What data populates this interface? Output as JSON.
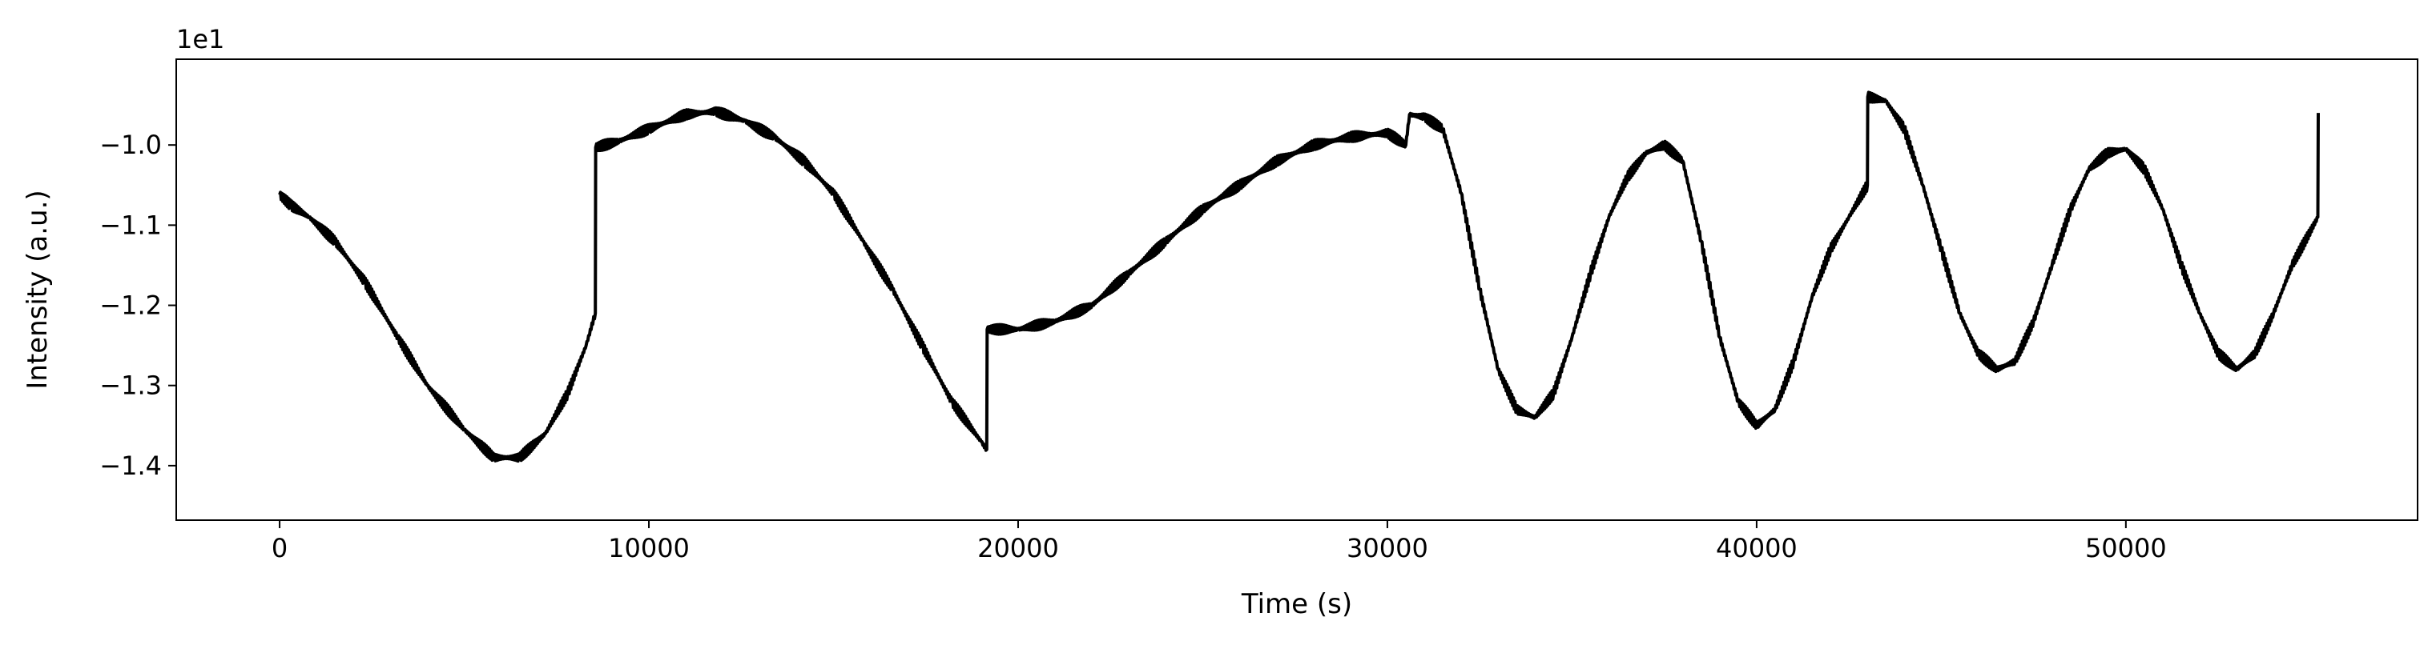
{
  "chart_data": {
    "type": "line",
    "title": "",
    "xlabel": "Time (s)",
    "ylabel": "Intensity (a.u.)",
    "y_offset_label": "1e1",
    "xlim": [
      -2800,
      57900
    ],
    "ylim": [
      -1.468,
      -0.893
    ],
    "x_ticks": [
      0,
      10000,
      20000,
      30000,
      40000,
      50000
    ],
    "x_tick_labels": [
      "0",
      "10000",
      "20000",
      "30000",
      "40000",
      "50000"
    ],
    "y_ticks": [
      -1.4,
      -1.3,
      -1.2,
      -1.1,
      -1.0
    ],
    "y_tick_labels": [
      "−1.4",
      "−1.3",
      "−1.2",
      "−1.1",
      "−1.0"
    ],
    "grid": false,
    "legend": "none",
    "series_color": "#000000",
    "series": [
      {
        "x": [
          0,
          300,
          800,
          1500,
          2300,
          3200,
          4000,
          5000,
          5800,
          6500,
          7200,
          7800,
          8300,
          8550,
          8560,
          9200,
          10000,
          11000,
          11800,
          12600,
          13400,
          14200,
          15000,
          15800,
          16600,
          17400,
          18200,
          19000,
          19150,
          19160,
          20000,
          21000,
          22000,
          23000,
          24000,
          25000,
          26000,
          27000,
          28000,
          29000,
          30000,
          30500,
          30600,
          31000,
          31500,
          32000,
          32500,
          33000,
          33500,
          34000,
          34500,
          35000,
          35500,
          36000,
          36500,
          37000,
          37500,
          38000,
          38500,
          39000,
          39500,
          40000,
          40500,
          41000,
          41500,
          42000,
          42500,
          43000,
          43010,
          43500,
          44000,
          44500,
          45000,
          45500,
          46000,
          46500,
          47000,
          47500,
          48000,
          48500,
          49000,
          49500,
          50000,
          50500,
          51000,
          51500,
          52000,
          52500,
          53000,
          53500,
          54000,
          54500,
          55200,
          55210
        ],
        "y": [
          -1.062,
          -1.075,
          -1.09,
          -1.12,
          -1.17,
          -1.24,
          -1.3,
          -1.355,
          -1.39,
          -1.39,
          -1.36,
          -1.31,
          -1.25,
          -1.21,
          -1.003,
          -0.995,
          -0.98,
          -0.962,
          -0.958,
          -0.97,
          -0.99,
          -1.02,
          -1.06,
          -1.12,
          -1.18,
          -1.25,
          -1.32,
          -1.37,
          -1.38,
          -1.23,
          -1.23,
          -1.22,
          -1.2,
          -1.16,
          -1.12,
          -1.08,
          -1.05,
          -1.02,
          -1.0,
          -0.99,
          -0.985,
          -1.0,
          -0.962,
          -0.965,
          -0.98,
          -1.06,
          -1.18,
          -1.28,
          -1.33,
          -1.34,
          -1.31,
          -1.24,
          -1.16,
          -1.09,
          -1.04,
          -1.01,
          -1.0,
          -1.02,
          -1.12,
          -1.24,
          -1.32,
          -1.35,
          -1.33,
          -1.27,
          -1.19,
          -1.13,
          -1.09,
          -1.05,
          -0.94,
          -0.945,
          -0.98,
          -1.05,
          -1.13,
          -1.21,
          -1.26,
          -1.28,
          -1.27,
          -1.22,
          -1.15,
          -1.08,
          -1.03,
          -1.01,
          -1.005,
          -1.03,
          -1.08,
          -1.15,
          -1.21,
          -1.26,
          -1.28,
          -1.26,
          -1.21,
          -1.15,
          -1.09,
          -0.96
        ]
      }
    ]
  }
}
